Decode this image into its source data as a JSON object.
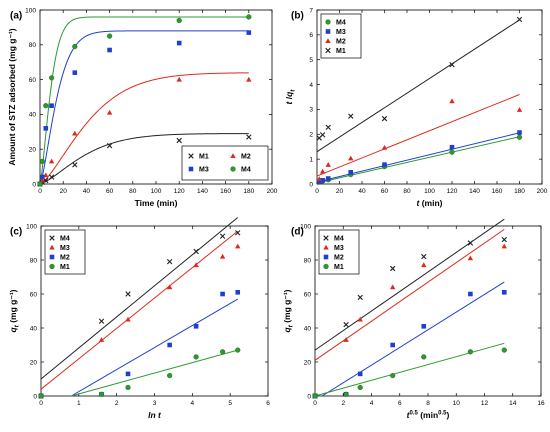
{
  "colors": {
    "M1": "#222222",
    "M2": "#dd2a1b",
    "M3": "#1f3fd0",
    "M4": "#2c9a2c"
  },
  "chart_data": [
    {
      "panel": "(a)",
      "type": "scatter",
      "xlabel": "Time (min)",
      "ylabel": "Amount of STZ adsorbed (mg g⁻¹)",
      "xlim": [
        0,
        200
      ],
      "ylim": [
        0,
        100
      ],
      "xticks": [
        0,
        20,
        40,
        60,
        80,
        100,
        120,
        140,
        160,
        180,
        200
      ],
      "yticks": [
        0,
        20,
        40,
        60,
        80,
        100
      ],
      "legend": {
        "placement": "bottom-right",
        "columns": 2,
        "entries": [
          "M1",
          "M2",
          "M3",
          "M4"
        ]
      },
      "series": [
        {
          "name": "M1",
          "marker": "x",
          "color_key": "M1",
          "x": [
            0,
            2,
            5,
            10,
            30,
            60,
            120,
            180
          ],
          "y": [
            0,
            1,
            2,
            4,
            11,
            22,
            25,
            27
          ]
        },
        {
          "name": "M2",
          "marker": "triangle",
          "color_key": "M2",
          "x": [
            0,
            2,
            5,
            10,
            30,
            60,
            120,
            180
          ],
          "y": [
            0,
            2,
            5,
            13,
            29,
            41,
            60,
            60
          ]
        },
        {
          "name": "M3",
          "marker": "square",
          "color_key": "M3",
          "x": [
            0,
            2,
            5,
            10,
            30,
            60,
            120,
            180
          ],
          "y": [
            0,
            4,
            32,
            45,
            64,
            77,
            81,
            87
          ]
        },
        {
          "name": "M4",
          "marker": "circle",
          "color_key": "M4",
          "x": [
            0,
            2,
            5,
            10,
            30,
            60,
            120,
            180
          ],
          "y": [
            0,
            13,
            45,
            61,
            79,
            85,
            94,
            96
          ]
        }
      ],
      "fit_curves": [
        {
          "series": "M1",
          "qe": 29,
          "k": 0.023,
          "hill": 1.4
        },
        {
          "series": "M2",
          "qe": 64,
          "k": 0.021,
          "hill": 1.4
        },
        {
          "series": "M3",
          "qe": 88,
          "k": 0.06,
          "hill": 1.4
        },
        {
          "series": "M4",
          "qe": 96,
          "k": 0.095,
          "hill": 1.4
        }
      ]
    },
    {
      "panel": "(b)",
      "type": "scatter",
      "xlabel": "t (min)",
      "ylabel": "t /qt",
      "xlim": [
        0,
        200
      ],
      "ylim": [
        0,
        7
      ],
      "xticks": [
        0,
        20,
        40,
        60,
        80,
        100,
        120,
        140,
        160,
        180,
        200
      ],
      "yticks": [
        0,
        1,
        2,
        3,
        4,
        5,
        6,
        7
      ],
      "legend": {
        "placement": "top-left",
        "columns": 1,
        "entries": [
          "M4",
          "M3",
          "M2",
          "M1"
        ]
      },
      "series": [
        {
          "name": "M4",
          "marker": "circle",
          "color_key": "M4",
          "x": [
            2,
            5,
            10,
            30,
            60,
            120,
            180
          ],
          "y": [
            0.1,
            0.12,
            0.17,
            0.38,
            0.7,
            1.28,
            1.88
          ]
        },
        {
          "name": "M3",
          "marker": "square",
          "color_key": "M3",
          "x": [
            2,
            5,
            10,
            30,
            60,
            120,
            180
          ],
          "y": [
            0.1,
            0.15,
            0.22,
            0.47,
            0.78,
            1.48,
            2.07
          ]
        },
        {
          "name": "M2",
          "marker": "triangle",
          "color_key": "M2",
          "x": [
            2,
            5,
            10,
            30,
            60,
            120,
            180
          ],
          "y": [
            0.2,
            0.5,
            0.77,
            1.03,
            1.46,
            3.33,
            2.98
          ]
        },
        {
          "name": "M1",
          "marker": "x",
          "color_key": "M1",
          "x": [
            2,
            5,
            10,
            30,
            60,
            120,
            180
          ],
          "y": [
            1.85,
            1.98,
            2.28,
            2.73,
            2.63,
            4.8,
            6.62
          ]
        }
      ],
      "fit_lines": [
        {
          "series": "M1",
          "x": [
            0,
            180
          ],
          "y": [
            1.3,
            6.6
          ]
        },
        {
          "series": "M2",
          "x": [
            0,
            180
          ],
          "y": [
            0.32,
            3.6
          ]
        },
        {
          "series": "M3",
          "x": [
            0,
            180
          ],
          "y": [
            0.08,
            2.06
          ]
        },
        {
          "series": "M4",
          "x": [
            0,
            180
          ],
          "y": [
            0.04,
            1.9
          ]
        }
      ]
    },
    {
      "panel": "(c)",
      "type": "scatter",
      "xlabel": "ln t",
      "ylabel": "qt (mg g⁻¹)",
      "xlim": [
        0,
        6
      ],
      "ylim": [
        0,
        100
      ],
      "xticks": [
        0,
        1,
        2,
        3,
        4,
        5,
        6
      ],
      "yticks": [
        0,
        20,
        40,
        60,
        80,
        100
      ],
      "legend": {
        "placement": "top-left",
        "columns": 1,
        "entries": [
          "M4",
          "M3",
          "M2",
          "M1"
        ]
      },
      "series": [
        {
          "name": "M4",
          "marker": "x",
          "color_key": "M1",
          "x": [
            0,
            1.6,
            2.3,
            3.4,
            4.1,
            4.8,
            5.2
          ],
          "y": [
            0,
            44,
            60,
            79,
            85,
            94,
            96
          ]
        },
        {
          "name": "M3",
          "marker": "triangle",
          "color_key": "M2",
          "x": [
            0,
            1.6,
            2.3,
            3.4,
            4.1,
            4.8,
            5.2
          ],
          "y": [
            0,
            33,
            45,
            64,
            77,
            82,
            88
          ]
        },
        {
          "name": "M2",
          "marker": "square",
          "color_key": "M3",
          "x": [
            0,
            1.6,
            2.3,
            3.4,
            4.1,
            4.8,
            5.2
          ],
          "y": [
            0,
            1,
            13,
            30,
            41,
            60,
            61
          ]
        },
        {
          "name": "M1",
          "marker": "circle",
          "color_key": "M4",
          "x": [
            0,
            1.6,
            2.3,
            3.4,
            4.1,
            4.8,
            5.2
          ],
          "y": [
            0,
            1,
            5,
            12,
            23,
            26,
            27
          ]
        }
      ],
      "fit_lines": [
        {
          "series": "M4",
          "color_key": "M1",
          "x": [
            0,
            5.2
          ],
          "y": [
            10,
            105
          ]
        },
        {
          "series": "M3",
          "color_key": "M2",
          "x": [
            0,
            5.2
          ],
          "y": [
            4,
            97
          ]
        },
        {
          "series": "M2",
          "color_key": "M3",
          "x": [
            0.8,
            5.2
          ],
          "y": [
            0,
            57
          ]
        },
        {
          "series": "M1",
          "color_key": "M4",
          "x": [
            0.8,
            5.2
          ],
          "y": [
            0,
            27
          ]
        }
      ]
    },
    {
      "panel": "(d)",
      "type": "scatter",
      "xlabel": "t^0.5 (min^0.5)",
      "ylabel": "qt (mg g⁻¹)",
      "xlim": [
        0,
        16
      ],
      "ylim": [
        0,
        100
      ],
      "xticks": [
        0,
        2,
        4,
        6,
        8,
        10,
        12,
        14,
        16
      ],
      "yticks": [
        0,
        20,
        40,
        60,
        80,
        100
      ],
      "legend": {
        "placement": "top-left",
        "columns": 1,
        "entries": [
          "M4",
          "M3",
          "M2",
          "M1"
        ]
      },
      "series": [
        {
          "name": "M4",
          "marker": "x",
          "color_key": "M1",
          "x": [
            0,
            2.2,
            3.2,
            5.5,
            7.7,
            11,
            13.4
          ],
          "y": [
            0,
            42,
            58,
            75,
            82,
            90,
            92
          ]
        },
        {
          "name": "M3",
          "marker": "triangle",
          "color_key": "M2",
          "x": [
            0,
            2.2,
            3.2,
            5.5,
            7.7,
            11,
            13.4
          ],
          "y": [
            0,
            33,
            45,
            64,
            77,
            81,
            88
          ]
        },
        {
          "name": "M2",
          "marker": "square",
          "color_key": "M3",
          "x": [
            0,
            2.2,
            3.2,
            5.5,
            7.7,
            11,
            13.4
          ],
          "y": [
            0,
            1,
            13,
            30,
            41,
            60,
            61
          ]
        },
        {
          "name": "M1",
          "marker": "circle",
          "color_key": "M4",
          "x": [
            0,
            2.2,
            3.2,
            5.5,
            7.7,
            11,
            13.4
          ],
          "y": [
            0,
            1,
            5,
            12,
            23,
            26,
            27
          ]
        }
      ],
      "fit_lines": [
        {
          "series": "M4",
          "color_key": "M1",
          "x": [
            0,
            13.4
          ],
          "y": [
            27,
            104
          ]
        },
        {
          "series": "M3",
          "color_key": "M2",
          "x": [
            0,
            13.4
          ],
          "y": [
            21,
            98
          ]
        },
        {
          "series": "M2",
          "color_key": "M3",
          "x": [
            0.5,
            13.4
          ],
          "y": [
            0,
            67
          ]
        },
        {
          "series": "M1",
          "color_key": "M4",
          "x": [
            0,
            13.4
          ],
          "y": [
            0,
            31
          ]
        }
      ]
    }
  ]
}
